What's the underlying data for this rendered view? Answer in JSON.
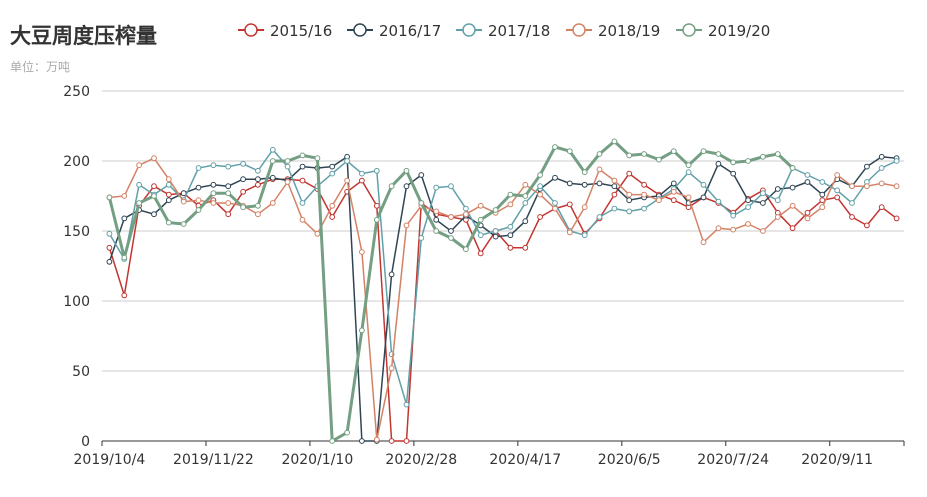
{
  "chart_data": {
    "type": "line",
    "title": "大豆周度压榨量",
    "subtitle": "单位：万吨",
    "legend_position": "top",
    "ylim": [
      0,
      250
    ],
    "yticks": [
      0,
      50,
      100,
      150,
      200,
      250
    ],
    "grid": true,
    "x_tick_labels": [
      "2019/10/4",
      "2019/11/22",
      "2020/1/10",
      "2020/2/28",
      "2020/4/17",
      "2020/6/5",
      "2020/7/24",
      "2020/9/11"
    ],
    "x_tick_index": [
      0,
      7,
      14,
      21,
      28,
      35,
      42,
      49
    ],
    "series": [
      {
        "name": "2015/16",
        "color": "#c23531",
        "values": [
          138,
          104,
          168,
          182,
          176,
          177,
          168,
          172,
          162,
          178,
          183,
          187,
          187,
          186,
          180,
          160,
          178,
          186,
          168,
          0,
          0,
          170,
          162,
          160,
          158,
          134,
          150,
          138,
          138,
          160,
          166,
          169,
          148,
          159,
          176,
          191,
          183,
          176,
          172,
          167,
          174,
          170,
          163,
          173,
          179,
          163,
          152,
          163,
          172,
          174,
          160,
          154,
          167,
          159
        ]
      },
      {
        "name": "2016/17",
        "color": "#2f4554",
        "values": [
          128,
          159,
          165,
          162,
          172,
          177,
          181,
          183,
          182,
          187,
          187,
          188,
          186,
          196,
          195,
          196,
          203,
          0,
          0,
          119,
          182,
          190,
          158,
          150,
          161,
          154,
          146,
          147,
          157,
          180,
          188,
          184,
          183,
          184,
          182,
          172,
          174,
          175,
          184,
          170,
          174,
          198,
          191,
          172,
          170,
          180,
          181,
          185,
          176,
          187,
          182,
          196,
          203,
          202
        ]
      },
      {
        "name": "2017/18",
        "color": "#61a0a8",
        "values": [
          148,
          130,
          183,
          176,
          183,
          172,
          195,
          197,
          196,
          198,
          193,
          208,
          196,
          170,
          182,
          191,
          200,
          191,
          193,
          62,
          26,
          145,
          181,
          182,
          166,
          147,
          150,
          153,
          170,
          182,
          170,
          150,
          147,
          160,
          166,
          164,
          166,
          173,
          180,
          192,
          183,
          171,
          161,
          167,
          177,
          172,
          195,
          190,
          185,
          179,
          170,
          185,
          195,
          200
        ]
      },
      {
        "name": "2018/19",
        "color": "#d48265",
        "values": [
          174,
          175,
          197,
          202,
          187,
          171,
          172,
          170,
          170,
          168,
          162,
          170,
          185,
          158,
          148,
          168,
          186,
          135,
          1,
          52,
          154,
          168,
          164,
          160,
          162,
          168,
          163,
          169,
          183,
          176,
          166,
          149,
          167,
          194,
          186,
          176,
          176,
          172,
          178,
          174,
          142,
          152,
          151,
          155,
          150,
          160,
          168,
          159,
          167,
          190,
          182,
          182,
          184,
          182
        ]
      },
      {
        "name": "2019/20",
        "color": "#749f83",
        "values": [
          174,
          131,
          170,
          175,
          156,
          155,
          165,
          177,
          177,
          167,
          168,
          200,
          200,
          204,
          202,
          0,
          6,
          79,
          158,
          182,
          193,
          170,
          150,
          145,
          137,
          158,
          165,
          176,
          175,
          190,
          210,
          207,
          192,
          205,
          214,
          204,
          205,
          201,
          207,
          197,
          207,
          205,
          199,
          200,
          203,
          205,
          195
        ]
      }
    ]
  }
}
